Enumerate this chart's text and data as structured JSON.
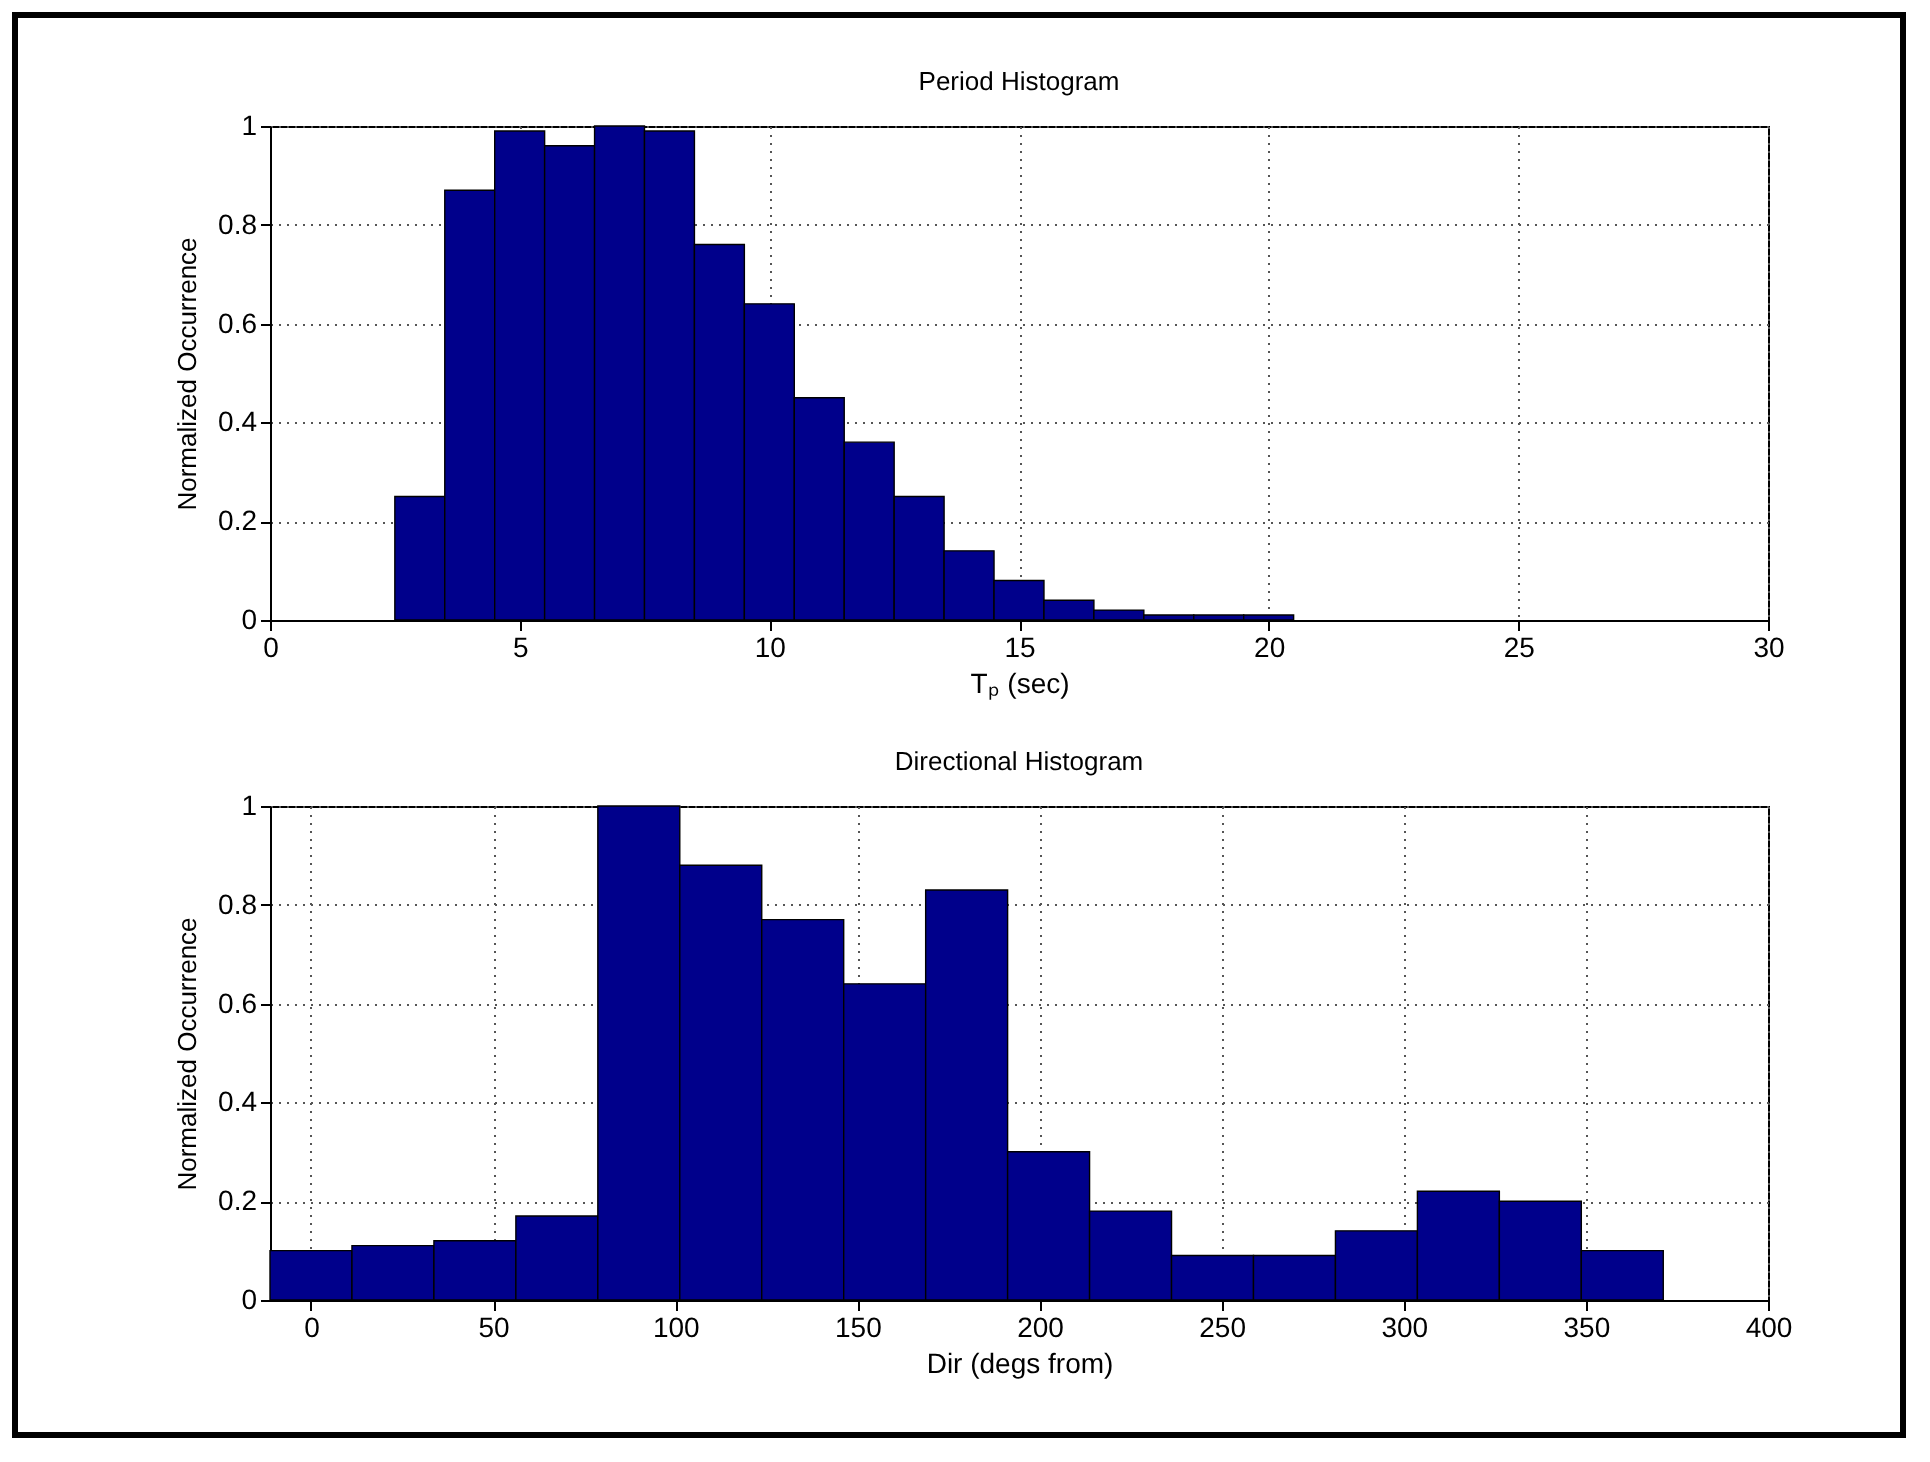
{
  "chart_data": [
    {
      "type": "histogram",
      "title": "Period Histogram",
      "xlabel": "Tₚ (sec)",
      "ylabel": "Normalized Occurrence",
      "color": "#00008b",
      "bins": [
        2.5,
        3.5,
        4.5,
        5.5,
        6.5,
        7.5,
        8.5,
        9.5,
        10.5,
        11.5,
        12.5,
        13.5,
        14.5,
        15.5,
        16.5,
        17.5,
        18.5,
        19.5,
        20.5
      ],
      "values": [
        0.25,
        0.87,
        0.99,
        0.96,
        1.0,
        0.99,
        0.76,
        0.64,
        0.45,
        0.36,
        0.25,
        0.14,
        0.08,
        0.04,
        0.02,
        0.01,
        0.01,
        0.01
      ],
      "xlim": [
        0,
        30
      ],
      "xticks": [
        0,
        5,
        10,
        15,
        20,
        25,
        30
      ],
      "ylim": [
        0,
        1
      ],
      "yticks": [
        0,
        0.2,
        0.4,
        0.6,
        0.8,
        1
      ],
      "grid": true
    },
    {
      "type": "histogram",
      "title": "Directional Histogram",
      "xlabel": "Dir (degs from)",
      "ylabel": "Normalized Occurrence",
      "color": "#00008b",
      "bins": [
        -11.25,
        11.25,
        33.75,
        56.25,
        78.75,
        101.25,
        123.75,
        146.25,
        168.75,
        191.25,
        213.75,
        236.25,
        258.75,
        281.25,
        303.75,
        326.25,
        348.75,
        371.25
      ],
      "values": [
        0.1,
        0.11,
        0.12,
        0.17,
        1.0,
        0.88,
        0.77,
        0.64,
        0.83,
        0.3,
        0.18,
        0.09,
        0.09,
        0.14,
        0.22,
        0.2,
        0.1
      ],
      "xlim": [
        -11.25,
        400
      ],
      "xticks": [
        0,
        50,
        100,
        150,
        200,
        250,
        300,
        350,
        400
      ],
      "ylim": [
        0,
        1
      ],
      "yticks": [
        0,
        0.2,
        0.4,
        0.6,
        0.8,
        1
      ],
      "grid": true
    }
  ]
}
